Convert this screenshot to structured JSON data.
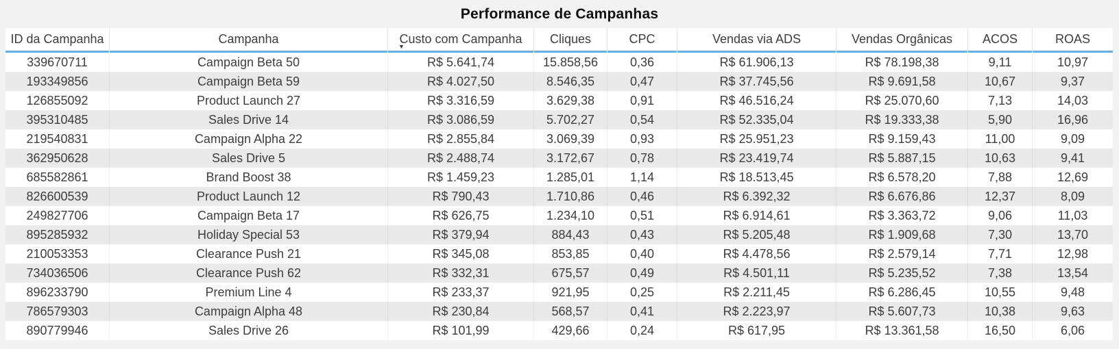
{
  "title": "Performance de Campanhas",
  "chart_data": {
    "type": "table",
    "title": "Performance de Campanhas",
    "columns": [
      "ID da Campanha",
      "Campanha",
      "Custo com Campanha",
      "Cliques",
      "CPC",
      "Vendas via ADS",
      "Vendas Orgânicas",
      "ACOS",
      "ROAS"
    ],
    "sort": {
      "column": "Custo com Campanha",
      "index": 2,
      "direction": "descending"
    },
    "rows": [
      [
        "339670711",
        "Campaign Beta 50",
        "R$ 5.641,74",
        "15.858,56",
        "0,36",
        "R$ 61.906,13",
        "R$ 78.198,38",
        "9,11",
        "10,97"
      ],
      [
        "193349856",
        "Campaign Beta 59",
        "R$ 4.027,50",
        "8.546,35",
        "0,47",
        "R$ 37.745,56",
        "R$ 9.691,58",
        "10,67",
        "9,37"
      ],
      [
        "126855092",
        "Product Launch 27",
        "R$ 3.316,59",
        "3.629,38",
        "0,91",
        "R$ 46.516,24",
        "R$ 25.070,60",
        "7,13",
        "14,03"
      ],
      [
        "395310485",
        "Sales Drive 14",
        "R$ 3.086,59",
        "5.702,27",
        "0,54",
        "R$ 52.335,04",
        "R$ 19.333,38",
        "5,90",
        "16,96"
      ],
      [
        "219540831",
        "Campaign Alpha 22",
        "R$ 2.855,84",
        "3.069,39",
        "0,93",
        "R$ 25.951,23",
        "R$ 9.159,43",
        "11,00",
        "9,09"
      ],
      [
        "362950628",
        "Sales Drive 5",
        "R$ 2.488,74",
        "3.172,67",
        "0,78",
        "R$ 23.419,74",
        "R$ 5.887,15",
        "10,63",
        "9,41"
      ],
      [
        "685582861",
        "Brand Boost 38",
        "R$ 1.459,23",
        "1.285,01",
        "1,14",
        "R$ 18.513,45",
        "R$ 6.578,20",
        "7,88",
        "12,69"
      ],
      [
        "826600539",
        "Product Launch 12",
        "R$ 790,43",
        "1.710,86",
        "0,46",
        "R$ 6.392,32",
        "R$ 6.676,86",
        "12,37",
        "8,09"
      ],
      [
        "249827706",
        "Campaign Beta 17",
        "R$ 626,75",
        "1.234,10",
        "0,51",
        "R$ 6.914,61",
        "R$ 3.363,72",
        "9,06",
        "11,03"
      ],
      [
        "895285932",
        "Holiday Special 53",
        "R$ 379,94",
        "884,43",
        "0,43",
        "R$ 5.205,48",
        "R$ 1.909,68",
        "7,30",
        "13,70"
      ],
      [
        "210053353",
        "Clearance Push 21",
        "R$ 345,08",
        "853,85",
        "0,40",
        "R$ 4.478,56",
        "R$ 2.579,14",
        "7,71",
        "12,98"
      ],
      [
        "734036506",
        "Clearance Push 62",
        "R$ 332,31",
        "675,57",
        "0,49",
        "R$ 4.501,11",
        "R$ 5.235,52",
        "7,38",
        "13,54"
      ],
      [
        "896233790",
        "Premium Line 4",
        "R$ 233,37",
        "921,95",
        "0,25",
        "R$ 2.211,45",
        "R$ 6.286,45",
        "10,55",
        "9,48"
      ],
      [
        "786579303",
        "Campaign Alpha 48",
        "R$ 230,84",
        "568,57",
        "0,41",
        "R$ 2.223,97",
        "R$ 5.607,73",
        "10,38",
        "9,63"
      ],
      [
        "890779946",
        "Sales Drive 26",
        "R$ 101,99",
        "429,66",
        "0,24",
        "R$ 617,95",
        "R$ 13.361,58",
        "16,50",
        "6,06"
      ]
    ]
  },
  "icons": {
    "sort_descending_glyph": "▼"
  },
  "colors": {
    "accent_line": "#67ade8",
    "page_background": "#f2f2f2",
    "card_background": "#ffffff",
    "row_alt": "#e9e9e9",
    "text": "#3d3d3d"
  }
}
